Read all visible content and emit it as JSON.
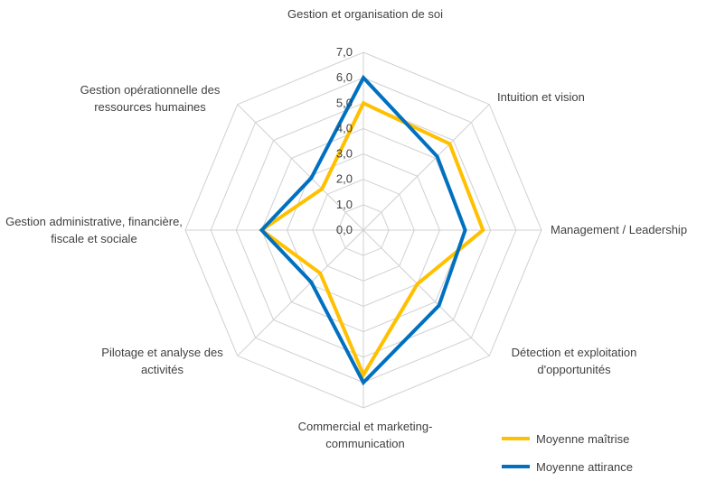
{
  "chart_data": {
    "type": "radar",
    "categories": [
      "Gestion et organisation de soi",
      "Intuition et vision",
      "Management / Leadership",
      "Détection et exploitation d'opportunités",
      "Commercial et marketing-communication",
      "Pilotage et analyse des activités",
      "Gestion administrative, financière, fiscale et sociale",
      "Gestion opérationnelle des ressources humaines"
    ],
    "series": [
      {
        "name": "Moyenne maîtrise",
        "color": "#FFC000",
        "values": [
          5.0,
          4.8,
          4.7,
          3.0,
          5.7,
          2.4,
          4.0,
          2.3
        ]
      },
      {
        "name": "Moyenne attirance",
        "color": "#0070C0",
        "values": [
          6.0,
          4.1,
          4.0,
          4.2,
          6.0,
          2.9,
          4.0,
          2.9
        ]
      }
    ],
    "ylim": [
      0,
      7
    ],
    "yticks": [
      {
        "value": 0,
        "label": "0,0"
      },
      {
        "value": 1,
        "label": "1,0"
      },
      {
        "value": 2,
        "label": "2,0"
      },
      {
        "value": 3,
        "label": "3,0"
      },
      {
        "value": 4,
        "label": "4,0"
      },
      {
        "value": 5,
        "label": "5,0"
      },
      {
        "value": 6,
        "label": "6,0"
      },
      {
        "value": 7,
        "label": "7,0"
      }
    ],
    "grid": true
  }
}
